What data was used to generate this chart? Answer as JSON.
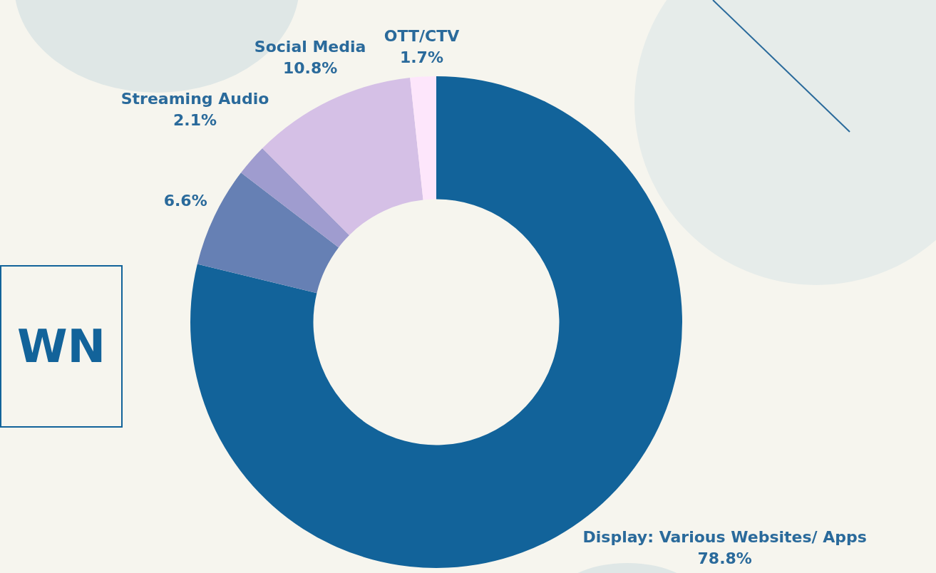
{
  "chart_data": {
    "type": "donut",
    "categories": [
      "Display: Various Websites/ Apps",
      null,
      "Streaming Audio",
      "Social Media",
      "OTT/CTV"
    ],
    "values": [
      78.8,
      6.6,
      2.1,
      10.8,
      1.7
    ],
    "colors": [
      "#12639a",
      "#6680b4",
      "#9f9ccf",
      "#d5c0e6",
      "#fde6fb"
    ],
    "value_labels": [
      "78.8%",
      "6.6%",
      "2.1%",
      "10.8%",
      "1.7%"
    ],
    "annotations": [
      "WN"
    ],
    "legend": false
  }
}
